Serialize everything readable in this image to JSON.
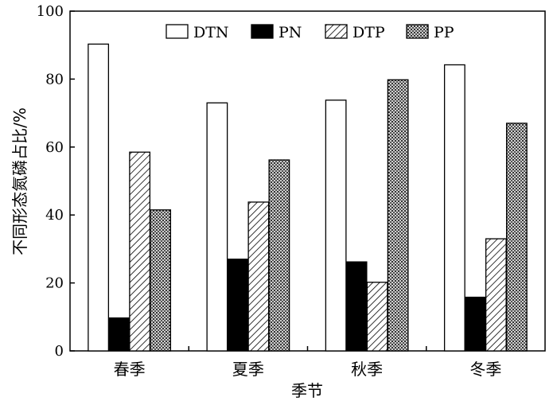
{
  "chart_data": {
    "type": "bar",
    "title": "",
    "xlabel": "季节",
    "ylabel": "不同形态氮磷占比/%",
    "ylim": [
      0,
      100
    ],
    "yticks": [
      0,
      20,
      40,
      60,
      80,
      100
    ],
    "categories": [
      "春季",
      "夏季",
      "秋季",
      "冬季"
    ],
    "series": [
      {
        "name": "DTN",
        "values": [
          90.3,
          73.0,
          73.8,
          84.2
        ],
        "fill": "white"
      },
      {
        "name": "PN",
        "values": [
          9.7,
          27.0,
          26.2,
          15.8
        ],
        "fill": "black"
      },
      {
        "name": "DTP",
        "values": [
          58.5,
          43.8,
          20.2,
          33.0
        ],
        "fill": "diagonal-hatch"
      },
      {
        "name": "PP",
        "values": [
          41.5,
          56.2,
          79.8,
          67.0
        ],
        "fill": "crosshatch-dots"
      }
    ],
    "legend_position": "top",
    "grid": false
  }
}
